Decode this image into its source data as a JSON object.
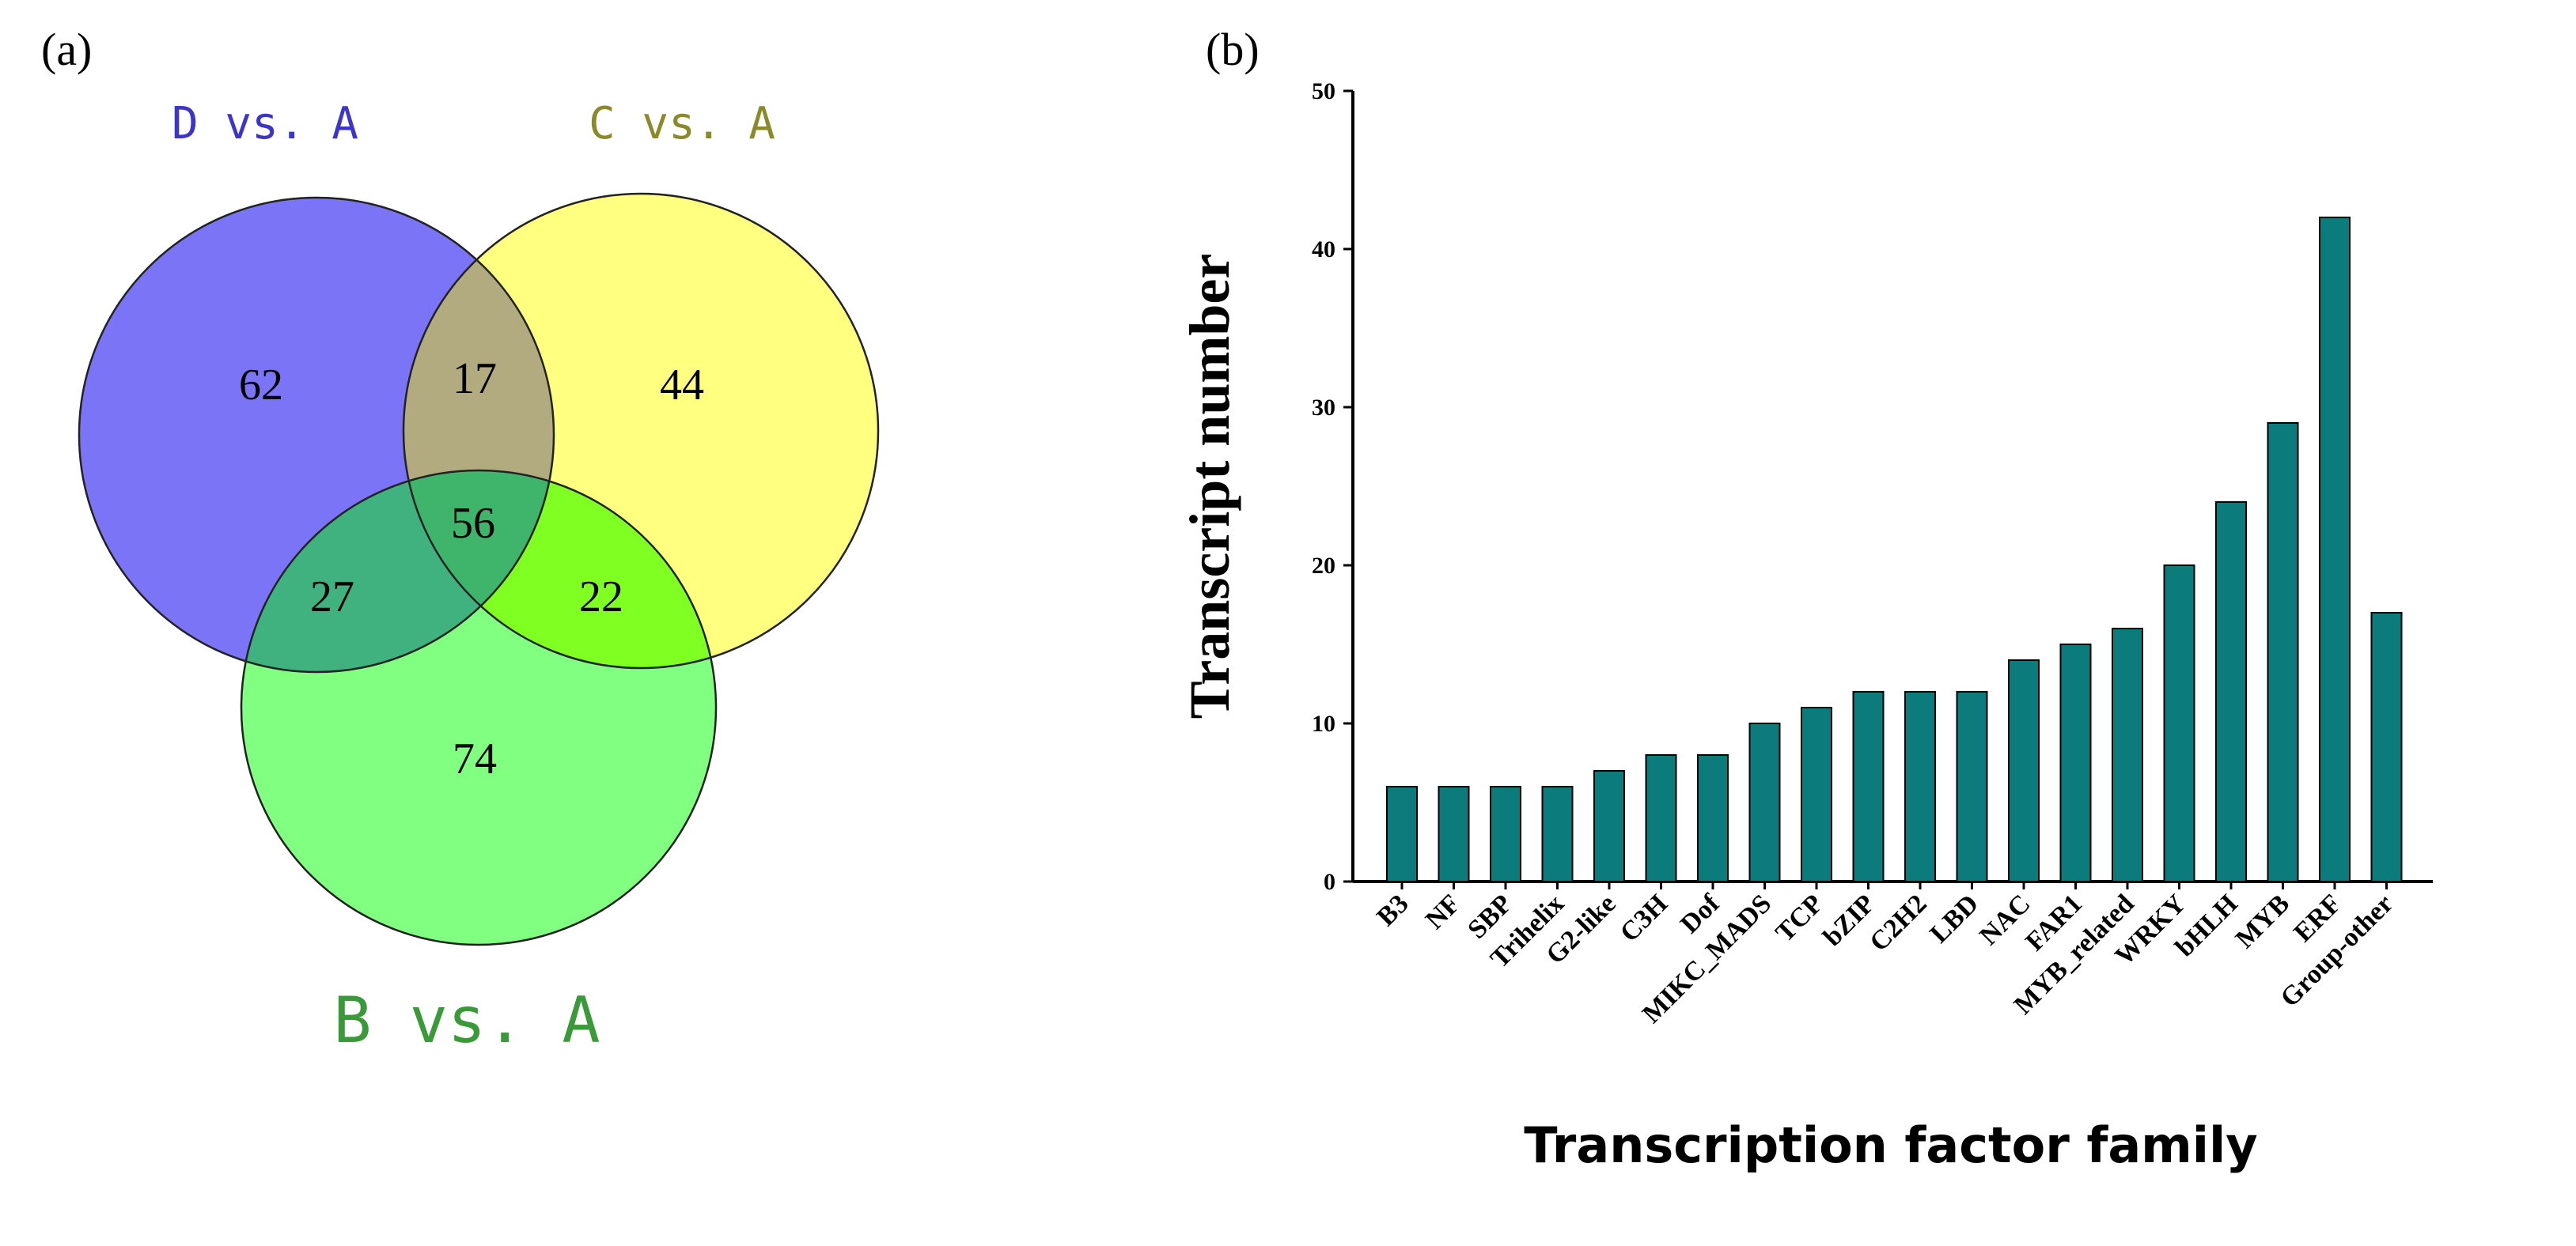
{
  "panel_a_label": "(a)",
  "panel_b_label": "(b)",
  "venn": {
    "sets": {
      "d": {
        "label": "D vs. A",
        "color": "#7b74f7",
        "label_color": "#3d35c9"
      },
      "c": {
        "label": "C vs. A",
        "color": "#ffff80",
        "label_color": "#8a8a2a"
      },
      "b": {
        "label": "B vs. A",
        "color": "#80ff80",
        "label_color": "#3a9a3a"
      }
    },
    "counts": {
      "d_only": "62",
      "c_only": "44",
      "b_only": "74",
      "d_c": "17",
      "d_b": "27",
      "c_b": "22",
      "all": "56"
    }
  },
  "chart_data": {
    "type": "bar",
    "title": "",
    "xlabel": "Transcription factor family",
    "ylabel": "Transcript number",
    "ylim": [
      0,
      50
    ],
    "yticks": [
      0,
      10,
      20,
      30,
      40,
      50
    ],
    "bar_color": "#0b7b7b",
    "categories": [
      "B3",
      "NF",
      "SBP",
      "Trihelix",
      "G2-like",
      "C3H",
      "Dof",
      "MIKC_MADS",
      "TCP",
      "bZIP",
      "C2H2",
      "LBD",
      "NAC",
      "FAR1",
      "MYB_related",
      "WRKY",
      "bHLH",
      "MYB",
      "ERF",
      "Group-other"
    ],
    "values": [
      6,
      6,
      6,
      6,
      7,
      8,
      8,
      10,
      11,
      12,
      12,
      12,
      14,
      15,
      16,
      20,
      24,
      29,
      42,
      17
    ]
  }
}
